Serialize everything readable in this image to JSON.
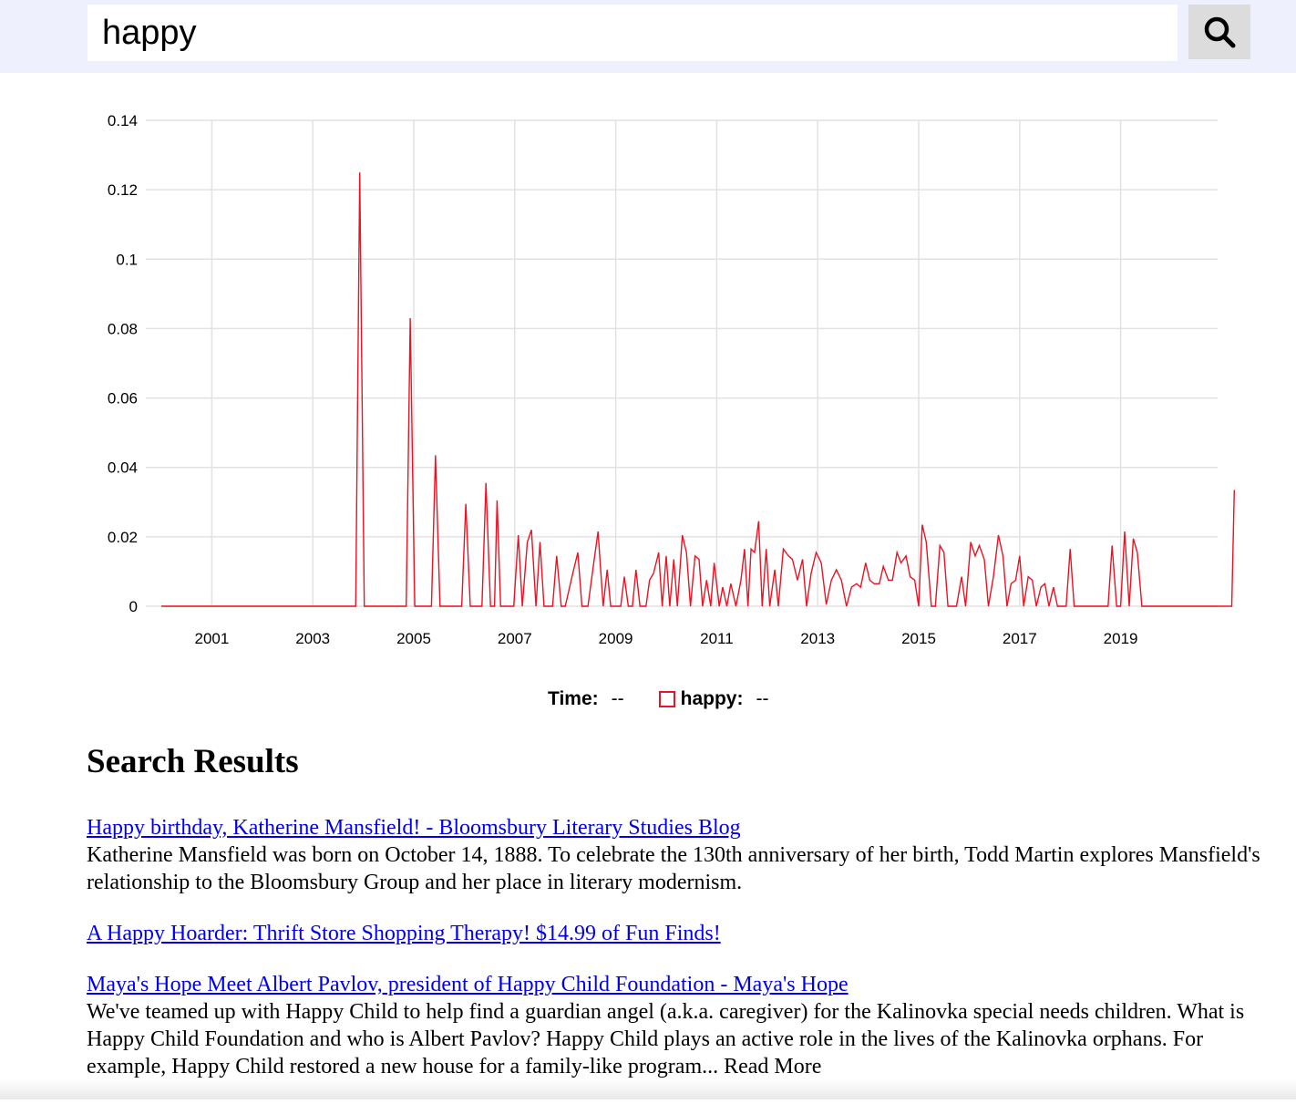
{
  "search": {
    "value": "happy",
    "button_icon": "search-icon"
  },
  "chart_data": {
    "type": "line",
    "title": "",
    "x_ticks": [
      "2001",
      "2003",
      "2005",
      "2007",
      "2009",
      "2011",
      "2013",
      "2015",
      "2017",
      "2019"
    ],
    "y_ticks": [
      "0.14",
      "0.12",
      "0.1",
      "0.08",
      "0.06",
      "0.04",
      "0.02",
      "0"
    ],
    "ylim": [
      0,
      0.14
    ],
    "xlim": [
      2000,
      2021.25
    ],
    "grid": true,
    "series": [
      {
        "name": "happy",
        "color": "#ee1122",
        "points": [
          [
            2000.0,
            0
          ],
          [
            2003.85,
            0
          ],
          [
            2003.93,
            0.125
          ],
          [
            2004.02,
            0
          ],
          [
            2004.85,
            0
          ],
          [
            2004.93,
            0.083
          ],
          [
            2005.02,
            0
          ],
          [
            2005.35,
            0
          ],
          [
            2005.43,
            0.0435
          ],
          [
            2005.52,
            0
          ],
          [
            2005.95,
            0
          ],
          [
            2006.03,
            0.0295
          ],
          [
            2006.12,
            0
          ],
          [
            2006.35,
            0
          ],
          [
            2006.43,
            0.0355
          ],
          [
            2006.52,
            0
          ],
          [
            2006.6,
            0
          ],
          [
            2006.65,
            0.0305
          ],
          [
            2006.72,
            0
          ],
          [
            2006.98,
            0
          ],
          [
            2007.07,
            0.0205
          ],
          [
            2007.15,
            0
          ],
          [
            2007.25,
            0.0185
          ],
          [
            2007.33,
            0.022
          ],
          [
            2007.42,
            0
          ],
          [
            2007.5,
            0.0185
          ],
          [
            2007.58,
            0
          ],
          [
            2007.75,
            0
          ],
          [
            2007.83,
            0.0145
          ],
          [
            2007.92,
            0
          ],
          [
            2008.0,
            0
          ],
          [
            2008.15,
            0.0095
          ],
          [
            2008.25,
            0.0155
          ],
          [
            2008.33,
            0
          ],
          [
            2008.45,
            0
          ],
          [
            2008.55,
            0.011
          ],
          [
            2008.65,
            0.0215
          ],
          [
            2008.75,
            0
          ],
          [
            2008.83,
            0.0105
          ],
          [
            2008.9,
            0
          ],
          [
            2009.1,
            0
          ],
          [
            2009.17,
            0.0085
          ],
          [
            2009.25,
            0
          ],
          [
            2009.33,
            0
          ],
          [
            2009.4,
            0.0105
          ],
          [
            2009.48,
            0
          ],
          [
            2009.6,
            0
          ],
          [
            2009.67,
            0.0075
          ],
          [
            2009.75,
            0.0095
          ],
          [
            2009.85,
            0.0155
          ],
          [
            2009.92,
            0
          ],
          [
            2010.0,
            0.0145
          ],
          [
            2010.07,
            0
          ],
          [
            2010.15,
            0.0135
          ],
          [
            2010.22,
            0
          ],
          [
            2010.32,
            0.0205
          ],
          [
            2010.4,
            0.0155
          ],
          [
            2010.48,
            0
          ],
          [
            2010.57,
            0.0145
          ],
          [
            2010.65,
            0.0135
          ],
          [
            2010.72,
            0
          ],
          [
            2010.8,
            0.0075
          ],
          [
            2010.88,
            0
          ],
          [
            2010.95,
            0.0125
          ],
          [
            2011.05,
            0
          ],
          [
            2011.12,
            0.0055
          ],
          [
            2011.2,
            0
          ],
          [
            2011.28,
            0.0065
          ],
          [
            2011.38,
            0
          ],
          [
            2011.48,
            0.0075
          ],
          [
            2011.55,
            0.0165
          ],
          [
            2011.62,
            0
          ],
          [
            2011.68,
            0.0165
          ],
          [
            2011.75,
            0.0155
          ],
          [
            2011.83,
            0.0245
          ],
          [
            2011.9,
            0
          ],
          [
            2011.98,
            0.0165
          ],
          [
            2012.05,
            0
          ],
          [
            2012.15,
            0.0105
          ],
          [
            2012.22,
            0
          ],
          [
            2012.32,
            0.0165
          ],
          [
            2012.42,
            0.0145
          ],
          [
            2012.5,
            0.0135
          ],
          [
            2012.6,
            0.0075
          ],
          [
            2012.7,
            0.0135
          ],
          [
            2012.78,
            0
          ],
          [
            2012.87,
            0.0095
          ],
          [
            2012.97,
            0.0155
          ],
          [
            2013.07,
            0.0125
          ],
          [
            2013.17,
            0.0005
          ],
          [
            2013.27,
            0.0075
          ],
          [
            2013.37,
            0.0105
          ],
          [
            2013.47,
            0.0075
          ],
          [
            2013.57,
            0
          ],
          [
            2013.67,
            0.0055
          ],
          [
            2013.77,
            0.0065
          ],
          [
            2013.85,
            0.0055
          ],
          [
            2013.95,
            0.0125
          ],
          [
            2014.03,
            0.0075
          ],
          [
            2014.12,
            0.0065
          ],
          [
            2014.22,
            0.0065
          ],
          [
            2014.3,
            0.0115
          ],
          [
            2014.4,
            0.0075
          ],
          [
            2014.48,
            0.0075
          ],
          [
            2014.57,
            0.0155
          ],
          [
            2014.65,
            0.0125
          ],
          [
            2014.75,
            0.0145
          ],
          [
            2014.83,
            0.0085
          ],
          [
            2014.92,
            0.0075
          ],
          [
            2015.0,
            0
          ],
          [
            2015.07,
            0.0235
          ],
          [
            2015.15,
            0.0185
          ],
          [
            2015.25,
            0
          ],
          [
            2015.33,
            0
          ],
          [
            2015.42,
            0.0175
          ],
          [
            2015.5,
            0.0155
          ],
          [
            2015.58,
            0
          ],
          [
            2015.75,
            0
          ],
          [
            2015.85,
            0.0085
          ],
          [
            2015.93,
            0
          ],
          [
            2016.03,
            0.0185
          ],
          [
            2016.12,
            0.0145
          ],
          [
            2016.2,
            0.0175
          ],
          [
            2016.3,
            0.0135
          ],
          [
            2016.38,
            0
          ],
          [
            2016.48,
            0.0085
          ],
          [
            2016.58,
            0.0205
          ],
          [
            2016.67,
            0.0145
          ],
          [
            2016.75,
            0
          ],
          [
            2016.83,
            0.0065
          ],
          [
            2016.92,
            0.0075
          ],
          [
            2017.0,
            0.0145
          ],
          [
            2017.08,
            0
          ],
          [
            2017.17,
            0.0085
          ],
          [
            2017.25,
            0.0075
          ],
          [
            2017.33,
            0
          ],
          [
            2017.42,
            0.0055
          ],
          [
            2017.5,
            0.0065
          ],
          [
            2017.58,
            0
          ],
          [
            2017.67,
            0.0055
          ],
          [
            2017.75,
            0
          ],
          [
            2017.92,
            0
          ],
          [
            2018.0,
            0.0165
          ],
          [
            2018.08,
            0
          ],
          [
            2018.75,
            0
          ],
          [
            2018.83,
            0.0175
          ],
          [
            2018.92,
            0
          ],
          [
            2019.0,
            0
          ],
          [
            2019.08,
            0.0215
          ],
          [
            2019.17,
            0
          ],
          [
            2019.25,
            0.0195
          ],
          [
            2019.33,
            0.0155
          ],
          [
            2019.42,
            0
          ],
          [
            2021.2,
            0
          ],
          [
            2021.25,
            0.0335
          ]
        ]
      }
    ]
  },
  "legend": {
    "time_label": "Time:",
    "time_value": "--",
    "series_label": "happy:",
    "series_value": "--"
  },
  "results": {
    "title": "Search Results",
    "items": [
      {
        "title": "Happy birthday, Katherine Mansfield! - Bloomsbury Literary Studies Blog",
        "snippet": "Katherine Mansfield was born on October 14, 1888. To celebrate the 130th anniversary of her birth, Todd Martin explores Mansfield's relationship to the Bloomsbury Group and her place in literary modernism."
      },
      {
        "title": "A Happy Hoarder: Thrift Store Shopping Therapy! $14.99 of Fun Finds!",
        "snippet": ""
      },
      {
        "title": "Maya's Hope Meet Albert Pavlov, president of Happy Child Foundation - Maya's Hope",
        "snippet": "We've teamed up with Happy Child to help find a guardian angel (a.k.a. caregiver) for the Kalinovka special needs children. What is Happy Child Foundation and who is Albert Pavlov? Happy Child plays an active role in the lives of the Kalinovka orphans. For example, Happy Child restored a new house for a family-like program... Read More"
      }
    ]
  }
}
